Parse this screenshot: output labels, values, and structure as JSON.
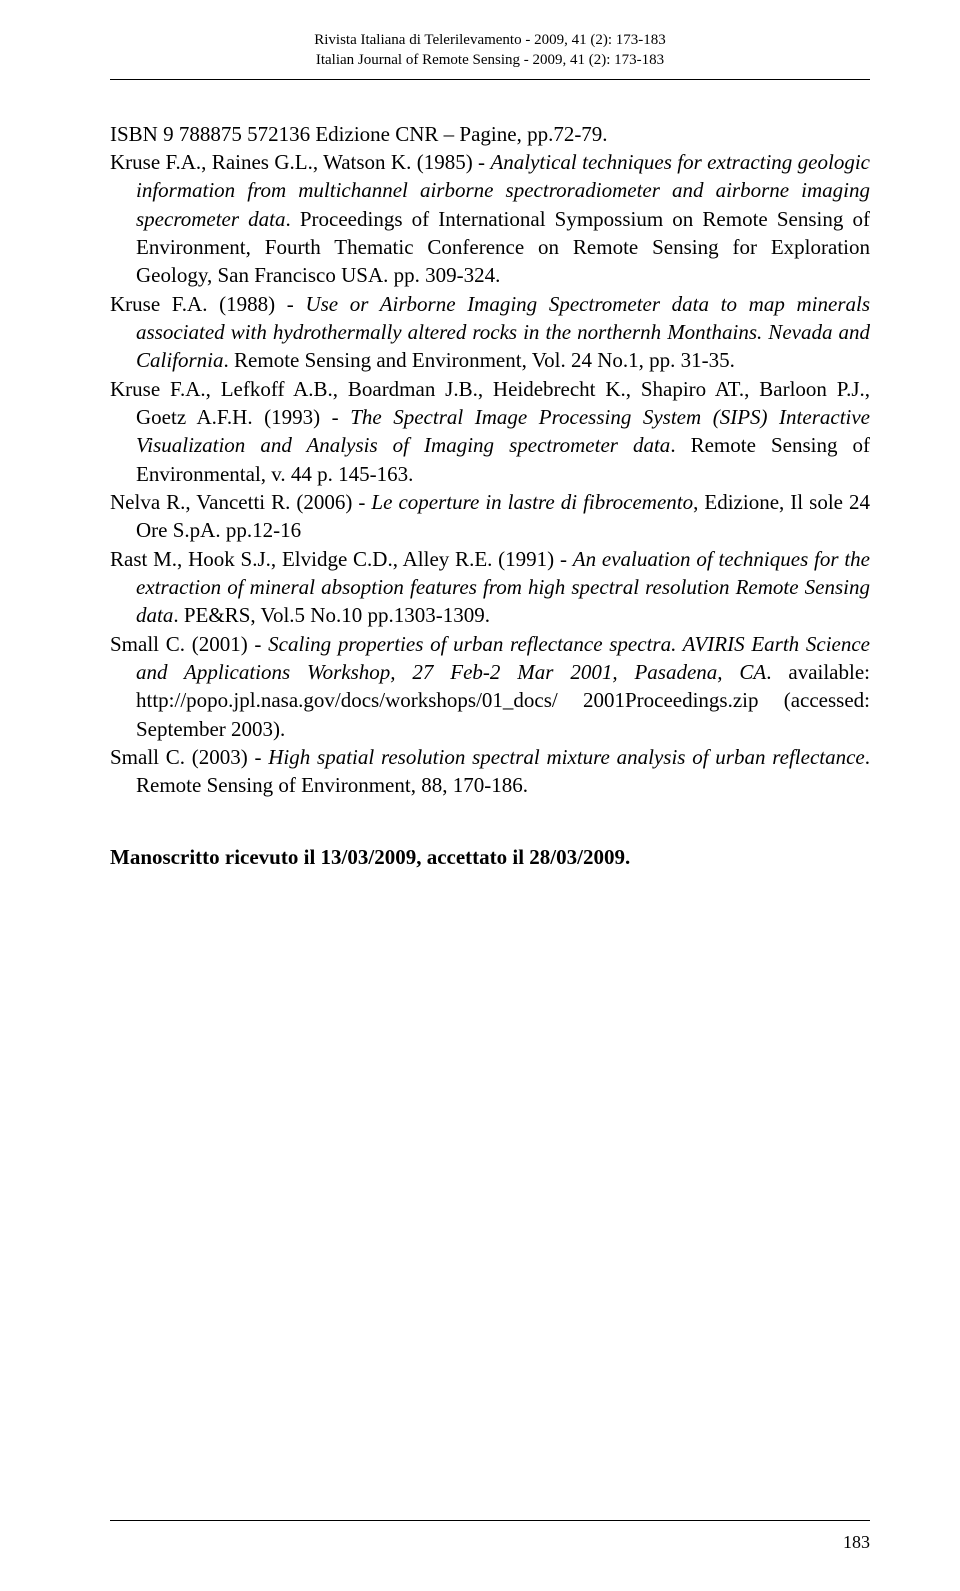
{
  "header": {
    "line1": "Rivista Italiana di Telerilevamento - 2009, 41 (2): 173-183",
    "line2": "Italian Journal of Remote Sensing - 2009, 41 (2): 173-183"
  },
  "references": [
    {
      "plain_before": "ISBN 9 788875 572136 Edizione CNR – Pagine, pp.72-79.",
      "italic": "",
      "plain_after": ""
    },
    {
      "plain_before": "Kruse F.A., Raines G.L., Watson K. (1985) - ",
      "italic": "Analytical techniques for extracting geologic information from multichannel airborne spectroradiometer and airborne imaging specrometer data",
      "plain_after": ". Proceedings of International Sympossium on Remote Sensing of Environment, Fourth Thematic Conference on Remote Sensing for Exploration Geology, San Francisco USA. pp. 309-324."
    },
    {
      "plain_before": "Kruse F.A. (1988) - ",
      "italic": "Use or Airborne Imaging Spectrometer data to map minerals associated with hydrothermally altered rocks in the northernh Monthains. Nevada and California",
      "plain_after": ". Remote Sensing and Environment, Vol. 24 No.1, pp. 31-35."
    },
    {
      "plain_before": "Kruse F.A., Lefkoff A.B., Boardman J.B., Heidebrecht K., Shapiro AT., Barloon P.J., Goetz A.F.H. (1993) - ",
      "italic": "The Spectral Image Processing System (SIPS) Interactive Visualization and Analysis of Imaging spectrometer data",
      "plain_after": ". Remote Sensing of Environmental, v. 44 p. 145-163."
    },
    {
      "plain_before": "Nelva R., Vancetti R. (2006) - ",
      "italic": "Le coperture in lastre di fibrocemento",
      "plain_after": ", Edizione, Il sole 24 Ore S.pA. pp.12-16"
    },
    {
      "plain_before": "Rast M., Hook S.J., Elvidge C.D., Alley R.E. (1991) - ",
      "italic": "An evaluation of techniques for the extraction of mineral absoption features from high spectral resolution Remote Sensing data",
      "plain_after": ". PE&RS, Vol.5 No.10 pp.1303-1309."
    },
    {
      "plain_before": "Small C. (2001) - ",
      "italic": "Scaling properties of urban reflectance spectra. AVIRIS Earth Science and Applications Workshop, 27 Feb-2 Mar 2001, Pasadena, CA",
      "plain_after": ". available: http://popo.jpl.nasa.gov/docs/workshops/01_docs/ 2001Proceedings.zip (accessed: September 2003)."
    },
    {
      "plain_before": "Small C. (2003) - ",
      "italic": "High spatial resolution spectral mixture analysis of urban reflectance",
      "plain_after": ". Remote Sensing of Environment, 88, 170-186."
    }
  ],
  "manuscript": "Manoscritto ricevuto il 13/03/2009, accettato il 28/03/2009.",
  "page_number": "183"
}
